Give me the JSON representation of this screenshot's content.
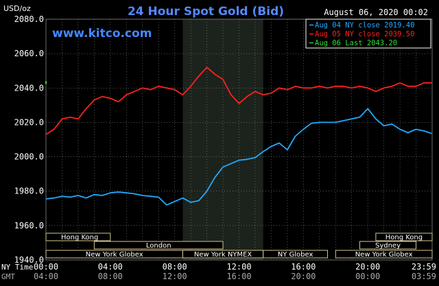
{
  "header": {
    "title": "24 Hour Spot Gold (Bid)",
    "unit": "USD/oz",
    "website": "www.kitco.com",
    "timestamp": "August 06, 2020 00:02"
  },
  "legend": [
    {
      "label": "Aug 04 NY close 2019.40",
      "color": "#22aaff"
    },
    {
      "label": "Aug 05 NY close 2039.50",
      "color": "#ff2020"
    },
    {
      "label": "Aug 06 Last 2043.20",
      "color": "#33dd33"
    }
  ],
  "axis_labels": {
    "ny_time": "NY Time",
    "gmt": "GMT"
  },
  "sessions": {
    "row1": [
      {
        "name": "Hong Kong",
        "start": 0,
        "end": 4
      },
      {
        "name": "Hong Kong",
        "start": 20.5,
        "end": 24
      }
    ],
    "row2": [
      {
        "name": "London",
        "start": 3,
        "end": 11
      },
      {
        "name": "Sydney",
        "start": 19.5,
        "end": 23
      }
    ],
    "row3": [
      {
        "name": "New York Globex",
        "start": 0,
        "end": 8.5
      },
      {
        "name": "New York NYMEX",
        "start": 8.5,
        "end": 13.5
      },
      {
        "name": "NY Globex",
        "start": 13.5,
        "end": 17.5
      },
      {
        "name": "New York Globex",
        "start": 18,
        "end": 24
      }
    ]
  },
  "chart_data": {
    "type": "line",
    "title": "24 Hour Spot Gold (Bid)",
    "ylabel": "USD/oz",
    "xlim": [
      0,
      24
    ],
    "ylim": [
      1940,
      2080
    ],
    "yticks": [
      "1940.0",
      "1960.0",
      "1980.0",
      "2000.0",
      "2020.0",
      "2040.0",
      "2060.0",
      "2080.0"
    ],
    "xticks_ny": [
      "00:00",
      "04:00",
      "08:00",
      "12:00",
      "16:00",
      "20:00",
      "23:59"
    ],
    "xticks_gmt": [
      "04:00",
      "08:00",
      "12:00",
      "16:00",
      "20:00",
      "00:00",
      "03:59"
    ],
    "grid": true,
    "shaded_x_range": [
      8.5,
      13.5
    ],
    "series": [
      {
        "name": "Aug 04",
        "color": "#22aaff",
        "x": [
          0,
          0.5,
          1,
          1.5,
          2,
          2.5,
          3,
          3.5,
          4,
          4.5,
          5,
          5.5,
          6,
          6.5,
          7,
          7.5,
          8,
          8.5,
          9,
          9.5,
          10,
          10.5,
          11,
          11.5,
          12,
          12.5,
          13,
          13.5,
          14,
          14.5,
          15,
          15.5,
          16,
          16.5,
          17,
          17.5,
          18,
          18.5,
          19,
          19.5,
          20,
          20.5,
          21,
          21.5,
          22,
          22.5,
          23,
          23.5,
          23.98
        ],
        "y": [
          1975.5,
          1976,
          1977,
          1976.5,
          1977.5,
          1976,
          1978,
          1977.5,
          1979,
          1979.5,
          1979,
          1978.5,
          1977.5,
          1977,
          1976.5,
          1972,
          1974,
          1976,
          1973.5,
          1974.5,
          1980,
          1988,
          1994,
          1996,
          1998,
          1998.5,
          1999.5,
          2003,
          2006,
          2008,
          2004,
          2012,
          2016,
          2019.5,
          2020,
          2020,
          2020,
          2021,
          2022,
          2023,
          2028,
          2022,
          2018,
          2019,
          2016,
          2014,
          2016,
          2015,
          2013.5
        ]
      },
      {
        "name": "Aug 05",
        "color": "#ff2020",
        "x": [
          0,
          0.5,
          1,
          1.5,
          2,
          2.5,
          3,
          3.5,
          4,
          4.5,
          5,
          5.5,
          6,
          6.5,
          7,
          7.5,
          8,
          8.5,
          9,
          9.5,
          10,
          10.5,
          11,
          11.5,
          12,
          12.5,
          13,
          13.5,
          14,
          14.5,
          15,
          15.5,
          16,
          16.5,
          17,
          17.5,
          18,
          18.5,
          19,
          19.5,
          20,
          20.5,
          21,
          21.5,
          22,
          22.5,
          23,
          23.5,
          23.98
        ],
        "y": [
          2013,
          2016,
          2022,
          2023,
          2022,
          2028,
          2033,
          2035,
          2034,
          2032,
          2036,
          2038,
          2040,
          2039,
          2041,
          2040,
          2039,
          2036,
          2041,
          2047,
          2052,
          2048,
          2045,
          2036,
          2031,
          2035,
          2038,
          2036,
          2037,
          2040,
          2039,
          2041,
          2040,
          2040,
          2041,
          2040,
          2041,
          2041,
          2040,
          2041,
          2040,
          2038,
          2040,
          2041,
          2043,
          2041,
          2041,
          2043,
          2043
        ]
      },
      {
        "name": "Aug 06",
        "color": "#33dd33",
        "x": [
          0,
          0.03
        ],
        "y": [
          2043.2,
          2043.2
        ]
      }
    ]
  }
}
